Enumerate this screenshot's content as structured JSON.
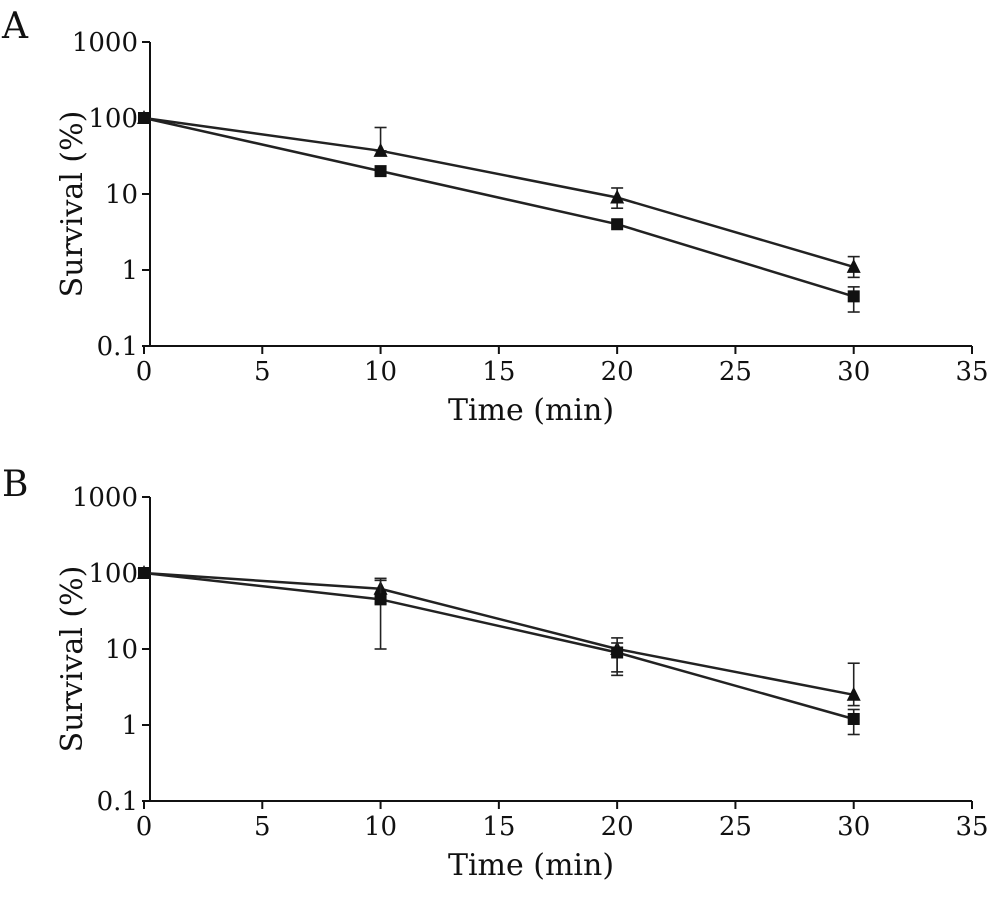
{
  "chart_data": [
    {
      "type": "line",
      "panel_label": "A",
      "xlabel": "Time (min)",
      "ylabel": "Survival (%)",
      "xlim": [
        0,
        35
      ],
      "ylim": [
        0.1,
        1000
      ],
      "yscale": "log",
      "xticks": [
        "0",
        "5",
        "10",
        "15",
        "20",
        "25",
        "30",
        "35"
      ],
      "yticks": [
        "0.1",
        "1",
        "10",
        "100",
        "1000"
      ],
      "legend": "none",
      "grid": false,
      "series": [
        {
          "marker": "triangle",
          "x": [
            0,
            10,
            20,
            30
          ],
          "y": [
            100,
            37,
            9,
            1.1
          ],
          "err_low": [
            100,
            37,
            6.5,
            0.8
          ],
          "err_high": [
            100,
            75,
            12,
            1.5
          ]
        },
        {
          "marker": "square",
          "x": [
            0,
            10,
            20,
            30
          ],
          "y": [
            100,
            20,
            4,
            0.45
          ],
          "err_low": [
            100,
            20,
            4,
            0.28
          ],
          "err_high": [
            100,
            20,
            4,
            0.6
          ]
        }
      ]
    },
    {
      "type": "line",
      "panel_label": "B",
      "xlabel": "Time (min)",
      "ylabel": "Survival (%)",
      "xlim": [
        0,
        35
      ],
      "ylim": [
        0.1,
        1000
      ],
      "yscale": "log",
      "xticks": [
        "0",
        "5",
        "10",
        "15",
        "20",
        "25",
        "30",
        "35"
      ],
      "yticks": [
        "0.1",
        "1",
        "10",
        "100",
        "1000"
      ],
      "legend": "none",
      "grid": false,
      "series": [
        {
          "marker": "triangle",
          "x": [
            0,
            10,
            20,
            30
          ],
          "y": [
            100,
            62,
            10,
            2.5
          ],
          "err_low": [
            100,
            40,
            5,
            1.8
          ],
          "err_high": [
            100,
            85,
            14,
            6.5
          ]
        },
        {
          "marker": "square",
          "x": [
            0,
            10,
            20,
            30
          ],
          "y": [
            100,
            45,
            9,
            1.2
          ],
          "err_low": [
            100,
            10,
            4.5,
            0.75
          ],
          "err_high": [
            100,
            80,
            12,
            1.6
          ]
        }
      ]
    }
  ]
}
